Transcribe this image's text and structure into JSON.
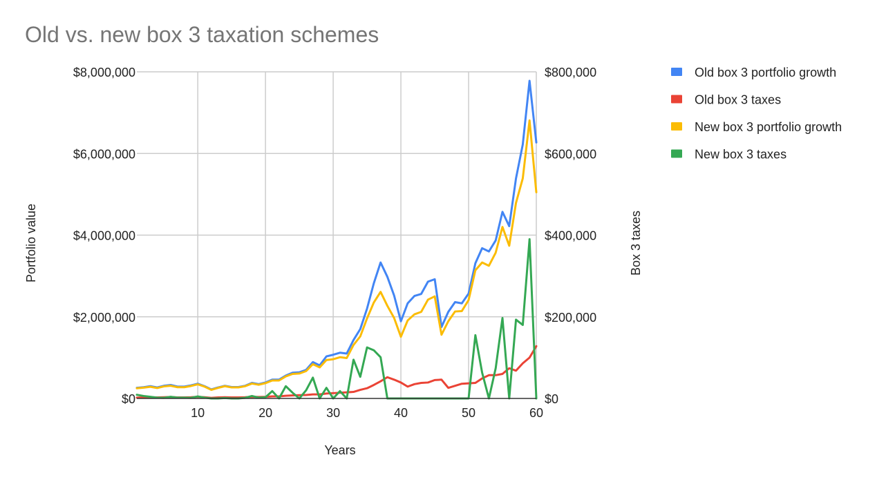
{
  "chart_data": {
    "type": "line",
    "title": "Old vs. new box 3 taxation schemes",
    "xlabel": "Years",
    "ylabel_left": "Portfolio value",
    "ylabel_right": "Box 3 taxes",
    "xlim": [
      1,
      60
    ],
    "ylim_left": [
      0,
      8000000
    ],
    "ylim_right": [
      0,
      800000
    ],
    "x_ticks": [
      "10",
      "20",
      "30",
      "40",
      "50",
      "60"
    ],
    "y_ticks_left": [
      "$0",
      "$2,000,000",
      "$4,000,000",
      "$6,000,000",
      "$8,000,000"
    ],
    "y_ticks_right": [
      "$0",
      "$200,000",
      "$400,000",
      "$600,000",
      "$800,000"
    ],
    "grid": true,
    "legend_position": "right",
    "series": [
      {
        "name": "Old box 3 portfolio growth",
        "axis": "left",
        "color": "#4285F4",
        "values": [
          260000,
          275000,
          300000,
          270000,
          310000,
          330000,
          290000,
          290000,
          320000,
          360000,
          300000,
          220000,
          270000,
          310000,
          280000,
          280000,
          310000,
          380000,
          350000,
          390000,
          460000,
          460000,
          560000,
          630000,
          640000,
          700000,
          890000,
          810000,
          1030000,
          1070000,
          1120000,
          1100000,
          1430000,
          1700000,
          2200000,
          2820000,
          3330000,
          2980000,
          2520000,
          1890000,
          2330000,
          2510000,
          2560000,
          2860000,
          2920000,
          1750000,
          2120000,
          2360000,
          2330000,
          2570000,
          3310000,
          3680000,
          3600000,
          3870000,
          4570000,
          4220000,
          5390000,
          6220000,
          7780000,
          6270000
        ]
      },
      {
        "name": "Old box 3 taxes",
        "axis": "right",
        "color": "#EA4335",
        "values": [
          2000,
          2500,
          3000,
          2500,
          3000,
          3500,
          2500,
          2500,
          3000,
          4000,
          3000,
          1500,
          2500,
          3000,
          2500,
          2500,
          3000,
          4000,
          3500,
          4000,
          5000,
          5000,
          6500,
          7500,
          8000,
          8500,
          10000,
          10000,
          12000,
          13000,
          14000,
          15000,
          16000,
          21000,
          25000,
          33000,
          42000,
          52000,
          46000,
          39000,
          29000,
          35000,
          38000,
          39000,
          45000,
          46000,
          26000,
          31000,
          36000,
          37000,
          38000,
          49000,
          57000,
          57000,
          60000,
          74000,
          68000,
          86000,
          100000,
          128000
        ]
      },
      {
        "name": "New box 3 portfolio growth",
        "axis": "left",
        "color": "#FBBC04",
        "values": [
          250000,
          265000,
          285000,
          255000,
          295000,
          310000,
          275000,
          275000,
          305000,
          345000,
          290000,
          210000,
          260000,
          300000,
          270000,
          270000,
          300000,
          365000,
          335000,
          375000,
          440000,
          440000,
          540000,
          600000,
          610000,
          670000,
          840000,
          760000,
          940000,
          960000,
          1010000,
          990000,
          1310000,
          1520000,
          1960000,
          2350000,
          2610000,
          2270000,
          1970000,
          1510000,
          1910000,
          2060000,
          2120000,
          2420000,
          2500000,
          1560000,
          1890000,
          2130000,
          2140000,
          2410000,
          3140000,
          3330000,
          3250000,
          3570000,
          4200000,
          3740000,
          4790000,
          5390000,
          6810000,
          5050000
        ]
      },
      {
        "name": "New box 3 taxes",
        "axis": "right",
        "color": "#34A853",
        "values": [
          9000,
          6000,
          4000,
          2000,
          1500,
          4000,
          2000,
          2000,
          1500,
          5000,
          2000,
          0,
          0,
          1000,
          0,
          0,
          1500,
          6000,
          2000,
          3000,
          18000,
          0,
          30000,
          14000,
          0,
          20000,
          51000,
          0,
          26000,
          0,
          18000,
          0,
          95000,
          53000,
          125000,
          118000,
          101000,
          0,
          0,
          0,
          0,
          0,
          0,
          0,
          0,
          0,
          0,
          0,
          0,
          0,
          155000,
          63000,
          0,
          74000,
          197000,
          0,
          193000,
          180000,
          390000,
          0
        ]
      }
    ]
  }
}
